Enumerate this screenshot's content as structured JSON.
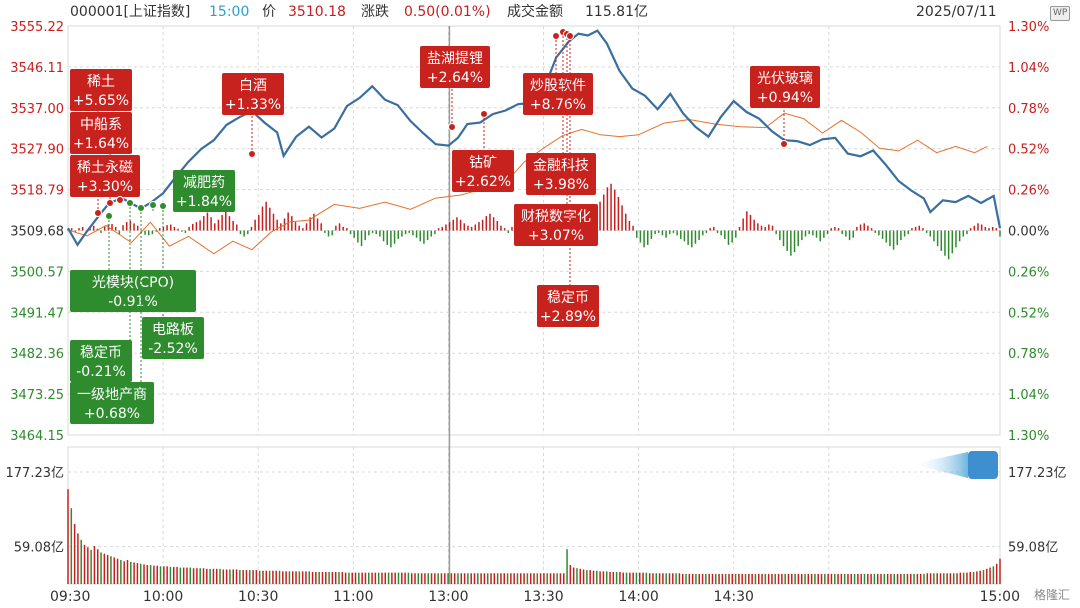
{
  "header": {
    "code_name": "000001[上证指数]",
    "time": "15:00",
    "price_label": "价",
    "price": "3510.18",
    "change_label": "涨跌",
    "change": "0.50(0.01%)",
    "turnover_label": "成交金额",
    "turnover": "115.81亿",
    "date": "2025/07/11",
    "badge": "WP"
  },
  "watermark": "格隆汇",
  "colors": {
    "up": "#c81e1e",
    "down": "#2e8b2e",
    "index_line": "#3a6e9e",
    "avg_line": "#e8702a",
    "grid": "#d9d9d9",
    "label_red_bg": "#c8221f",
    "label_green_bg": "#2e8b2e"
  },
  "chart_data": [
    {
      "type": "line",
      "title": "",
      "x_ticks": [
        "09:30",
        "10:00",
        "10:30",
        "11:00",
        "13:00",
        "13:30",
        "14:00",
        "14:30",
        "15:00"
      ],
      "left_axis_ticks": [
        "3555.22",
        "3546.11",
        "3537.00",
        "3527.90",
        "3518.79",
        "3509.68",
        "3500.57",
        "3491.47",
        "3482.36",
        "3473.25",
        "3464.15"
      ],
      "right_axis_ticks": [
        "1.30%",
        "1.04%",
        "0.78%",
        "0.52%",
        "0.26%",
        "0.00%",
        "0.26%",
        "0.52%",
        "0.78%",
        "1.04%",
        "1.30%"
      ],
      "ylim": [
        3464.15,
        3555.22
      ],
      "prev_close": 3509.68,
      "series": [
        {
          "role": "index",
          "points": [
            [
              0,
              3510.2
            ],
            [
              3,
              3506.5
            ],
            [
              6,
              3509.5
            ],
            [
              10,
              3513.2
            ],
            [
              13,
              3515.8
            ],
            [
              17,
              3516.9
            ],
            [
              20,
              3515.7
            ],
            [
              23,
              3514.6
            ],
            [
              26,
              3515.8
            ],
            [
              30,
              3518.0
            ],
            [
              34,
              3521.6
            ],
            [
              38,
              3525.0
            ],
            [
              42,
              3527.8
            ],
            [
              46,
              3529.8
            ],
            [
              50,
              3533.2
            ],
            [
              54,
              3534.9
            ],
            [
              58,
              3536.3
            ],
            [
              62,
              3533.7
            ],
            [
              66,
              3531.5
            ],
            [
              68,
              3526.3
            ],
            [
              72,
              3530.6
            ],
            [
              76,
              3532.8
            ],
            [
              80,
              3530.4
            ],
            [
              84,
              3532.4
            ],
            [
              88,
              3537.4
            ],
            [
              92,
              3539.2
            ],
            [
              96,
              3541.8
            ],
            [
              100,
              3538.8
            ],
            [
              104,
              3537.6
            ],
            [
              108,
              3534.1
            ],
            [
              112,
              3531.4
            ],
            [
              116,
              3528.9
            ],
            [
              120,
              3528.6
            ],
            [
              123,
              3530.3
            ],
            [
              126,
              3533.4
            ],
            [
              130,
              3533.7
            ],
            [
              134,
              3535.6
            ],
            [
              138,
              3536.4
            ],
            [
              142,
              3537.8
            ],
            [
              146,
              3538.1
            ],
            [
              150,
              3541.0
            ],
            [
              154,
              3548.2
            ],
            [
              158,
              3551.8
            ],
            [
              161,
              3553.5
            ],
            [
              164,
              3553.1
            ],
            [
              167,
              3554.2
            ],
            [
              170,
              3551.3
            ],
            [
              174,
              3545.2
            ],
            [
              178,
              3541.3
            ],
            [
              182,
              3539.7
            ],
            [
              186,
              3536.7
            ],
            [
              190,
              3540.1
            ],
            [
              194,
              3535.8
            ],
            [
              198,
              3532.7
            ],
            [
              202,
              3530.6
            ],
            [
              206,
              3535.0
            ],
            [
              210,
              3538.5
            ],
            [
              214,
              3536.1
            ],
            [
              218,
              3534.6
            ],
            [
              222,
              3531.8
            ],
            [
              226,
              3529.8
            ],
            [
              230,
              3529.6
            ],
            [
              234,
              3528.7
            ],
            [
              238,
              3530.0
            ],
            [
              242,
              3530.3
            ],
            [
              246,
              3526.8
            ],
            [
              250,
              3526.2
            ],
            [
              254,
              3527.5
            ],
            [
              258,
              3524.3
            ],
            [
              262,
              3520.7
            ],
            [
              266,
              3518.6
            ],
            [
              270,
              3516.8
            ],
            [
              272,
              3513.8
            ],
            [
              276,
              3516.4
            ],
            [
              280,
              3516.0
            ],
            [
              284,
              3517.4
            ],
            [
              288,
              3515.8
            ],
            [
              292,
              3517.4
            ],
            [
              294,
              3510.2
            ]
          ]
        },
        {
          "role": "average",
          "points": [
            [
              0,
              3509.8
            ],
            [
              6,
              3508.5
            ],
            [
              12,
              3510.8
            ],
            [
              20,
              3507.0
            ],
            [
              26,
              3511.5
            ],
            [
              32,
              3506.2
            ],
            [
              38,
              3508.4
            ],
            [
              46,
              3504.5
            ],
            [
              52,
              3507.3
            ],
            [
              58,
              3505.4
            ],
            [
              64,
              3509.3
            ],
            [
              70,
              3511.6
            ],
            [
              76,
              3512.0
            ],
            [
              84,
              3515.5
            ],
            [
              92,
              3514.6
            ],
            [
              100,
              3516.0
            ],
            [
              108,
              3514.4
            ],
            [
              116,
              3516.9
            ],
            [
              124,
              3517.6
            ],
            [
              132,
              3519.2
            ],
            [
              138,
              3520.3
            ],
            [
              144,
              3525.0
            ],
            [
              150,
              3528.0
            ],
            [
              156,
              3530.8
            ],
            [
              162,
              3532.2
            ],
            [
              168,
              3531.0
            ],
            [
              174,
              3530.6
            ],
            [
              180,
              3531.0
            ],
            [
              188,
              3533.6
            ],
            [
              196,
              3534.4
            ],
            [
              204,
              3533.4
            ],
            [
              212,
              3532.8
            ],
            [
              220,
              3532.6
            ],
            [
              226,
              3535.8
            ],
            [
              232,
              3534.6
            ],
            [
              238,
              3531.4
            ],
            [
              244,
              3534.2
            ],
            [
              250,
              3531.6
            ],
            [
              256,
              3528.0
            ],
            [
              262,
              3527.4
            ],
            [
              268,
              3529.8
            ],
            [
              274,
              3527.0
            ],
            [
              280,
              3528.4
            ],
            [
              286,
              3527.0
            ],
            [
              290,
              3528.4
            ]
          ]
        }
      ],
      "breadth_bars": {
        "description_values": "per-minute up/down histogram, relative magnitude",
        "values": [
          0.1,
          0.2,
          -0.1,
          0.2,
          0.3,
          -0.2,
          0.25,
          0.4,
          0.15,
          -0.2,
          0.35,
          0.5,
          0.55,
          0.3,
          -0.3,
          0.45,
          0.7,
          0.8,
          0.6,
          0.4,
          -0.2,
          -0.35,
          -0.4,
          -0.3,
          -0.1,
          0.2,
          0.3,
          0.45,
          0.5,
          0.3,
          0.15,
          -0.1,
          -0.2,
          0.3,
          0.55,
          0.7,
          0.85,
          1.2,
          1.5,
          1.1,
          0.6,
          0.9,
          1.3,
          1.6,
          1.2,
          0.8,
          0.5,
          -0.3,
          -0.5,
          -0.3,
          0.3,
          0.9,
          1.3,
          2.0,
          2.4,
          1.9,
          1.4,
          0.9,
          0.6,
          1.0,
          1.5,
          1.2,
          0.7,
          0.4,
          0.2,
          0.6,
          1.1,
          1.4,
          1.0,
          0.6,
          -0.2,
          -0.5,
          -0.4,
          0.4,
          0.6,
          0.3,
          0.2,
          -0.3,
          -0.6,
          -1.0,
          -1.3,
          -0.8,
          -0.4,
          -0.2,
          -0.3,
          -0.5,
          -0.9,
          -1.2,
          -1.4,
          -1.1,
          -0.7,
          -0.5,
          -0.3,
          -0.2,
          -0.4,
          -0.6,
          -0.9,
          -1.1,
          -0.8,
          -0.5,
          -0.3,
          0.2,
          0.3,
          0.5,
          0.7,
          0.9,
          1.1,
          0.9,
          0.6,
          0.4,
          0.3,
          0.5,
          0.7,
          0.9,
          1.2,
          1.4,
          1.1,
          0.8,
          0.4,
          0.2,
          -0.2,
          0.3,
          0.6,
          1.2,
          1.6,
          2.0,
          1.7,
          1.3,
          0.9,
          0.5,
          0.3,
          0.2,
          0.4,
          0.7,
          0.5,
          -0.5,
          -0.8,
          -0.6,
          0.4,
          0.5,
          0.6,
          0.3,
          0.2,
          -0.3,
          1.5,
          2.4,
          3.0,
          3.6,
          3.9,
          3.4,
          2.8,
          2.1,
          1.4,
          0.8,
          0.4,
          -0.6,
          -1.0,
          -1.4,
          -1.2,
          -0.7,
          -0.3,
          -0.2,
          -0.4,
          -0.6,
          -0.3,
          -0.2,
          -0.4,
          -0.7,
          -0.9,
          -1.2,
          -1.4,
          -1.1,
          -0.8,
          -0.4,
          -0.2,
          0.2,
          0.3,
          -0.2,
          -0.4,
          -0.7,
          -1.2,
          -1.0,
          -0.6,
          0.3,
          1.0,
          1.6,
          1.3,
          0.9,
          0.6,
          0.4,
          0.3,
          0.5,
          0.4,
          -0.3,
          -0.8,
          -1.3,
          -1.7,
          -2.1,
          -1.8,
          -1.3,
          -0.8,
          -0.5,
          -0.3,
          -0.4,
          -0.6,
          -0.9,
          -0.6,
          -0.3,
          0.2,
          0.3,
          0.2,
          -0.3,
          -0.5,
          -0.8,
          -0.6,
          0.3,
          0.5,
          0.6,
          0.4,
          0.2,
          -0.2,
          -0.4,
          -0.7,
          -1.0,
          -1.3,
          -1.6,
          -1.2,
          -0.8,
          -0.5,
          -0.3,
          0.2,
          0.3,
          0.4,
          0.2,
          -0.2,
          -0.5,
          -0.9,
          -1.3,
          -1.7,
          -2.1,
          -2.4,
          -1.9,
          -1.4,
          -0.9,
          -0.5,
          -0.3,
          0.2,
          0.4,
          0.6,
          0.5,
          0.3,
          0.2,
          0.3,
          0.2,
          -0.5
        ]
      },
      "annotations": [
        {
          "name": "稀土",
          "change": "+5.65%",
          "dir": "up"
        },
        {
          "name": "中船系",
          "change": "+1.64%",
          "dir": "up"
        },
        {
          "name": "稀土永磁",
          "change": "+3.30%",
          "dir": "up"
        },
        {
          "name": "减肥药",
          "change": "+1.84%",
          "dir": "down"
        },
        {
          "name": "白酒",
          "change": "+1.33%",
          "dir": "up"
        },
        {
          "name": "光模块(CPO)",
          "change": "-0.91%",
          "dir": "down"
        },
        {
          "name": "电路板",
          "change": "-2.52%",
          "dir": "down"
        },
        {
          "name": "稳定币",
          "change": "-0.21%",
          "dir": "down"
        },
        {
          "name": "一级地产商",
          "change": "+0.68%",
          "dir": "down"
        },
        {
          "name": "盐湖提锂",
          "change": "+2.64%",
          "dir": "up"
        },
        {
          "name": "钴矿",
          "change": "+2.62%",
          "dir": "up"
        },
        {
          "name": "炒股软件",
          "change": "+8.76%",
          "dir": "up"
        },
        {
          "name": "金融科技",
          "change": "+3.98%",
          "dir": "up"
        },
        {
          "name": "财税数字化",
          "change": "+3.07%",
          "dir": "up"
        },
        {
          "name": "稳定币",
          "change": "+2.89%",
          "dir": "up"
        },
        {
          "name": "光伏玻璃",
          "change": "+0.94%",
          "dir": "up"
        }
      ]
    },
    {
      "type": "bar",
      "title": "",
      "left_axis_ticks": [
        "177.23亿",
        "59.08亿"
      ],
      "right_axis_ticks": [
        "177.23亿",
        "59.08亿"
      ],
      "ylim": [
        0,
        177.23
      ],
      "values": [
        150,
        120,
        95,
        80,
        70,
        62,
        58,
        54,
        60,
        55,
        50,
        48,
        46,
        44,
        42,
        40,
        38,
        36,
        38,
        35,
        34,
        33,
        32,
        31,
        30,
        30,
        29,
        29,
        28,
        28,
        28,
        27,
        27,
        27,
        26,
        26,
        26,
        26,
        25,
        25,
        25,
        25,
        24,
        24,
        24,
        24,
        24,
        23,
        23,
        23,
        23,
        23,
        22,
        22,
        22,
        22,
        22,
        22,
        21,
        21,
        21,
        21,
        21,
        21,
        21,
        20,
        20,
        20,
        20,
        20,
        20,
        20,
        20,
        20,
        19,
        19,
        19,
        19,
        19,
        19,
        19,
        19,
        19,
        19,
        18,
        18,
        18,
        18,
        18,
        18,
        18,
        18,
        18,
        18,
        18,
        18,
        18,
        18,
        18,
        18,
        18,
        18,
        18,
        18,
        17,
        17,
        17,
        17,
        17,
        17,
        17,
        17,
        17,
        17,
        17,
        17,
        17,
        17,
        17,
        17,
        17,
        17,
        17,
        17,
        17,
        17,
        17,
        17,
        17,
        17,
        17,
        17,
        17,
        17,
        17,
        17,
        17,
        17,
        17,
        17,
        17,
        17,
        17,
        17,
        17,
        17,
        17,
        17,
        17,
        17,
        17,
        55,
        30,
        26,
        25,
        24,
        23,
        22,
        22,
        21,
        21,
        20,
        20,
        20,
        19,
        19,
        19,
        19,
        18,
        18,
        18,
        18,
        18,
        18,
        18,
        18,
        17,
        17,
        17,
        17,
        17,
        17,
        17,
        17,
        17,
        17,
        16,
        16,
        16,
        16,
        16,
        16,
        16,
        16,
        16,
        16,
        16,
        16,
        16,
        16,
        16,
        16,
        16,
        16,
        16,
        16,
        16,
        16,
        16,
        16,
        16,
        16,
        16,
        16,
        16,
        16,
        16,
        16,
        16,
        16,
        16,
        16,
        16,
        16,
        16,
        16,
        16,
        16,
        16,
        16,
        16,
        16,
        16,
        16,
        16,
        16,
        16,
        16,
        16,
        16,
        16,
        16,
        16,
        16,
        16,
        16,
        16,
        16,
        16,
        16,
        16,
        16,
        16,
        16,
        16,
        16,
        16,
        16,
        16,
        16,
        17,
        17,
        17,
        17,
        17,
        17,
        17,
        17,
        17,
        17,
        18,
        18,
        18,
        19,
        19,
        20,
        21,
        22,
        24,
        26,
        28,
        32,
        40
      ]
    }
  ]
}
